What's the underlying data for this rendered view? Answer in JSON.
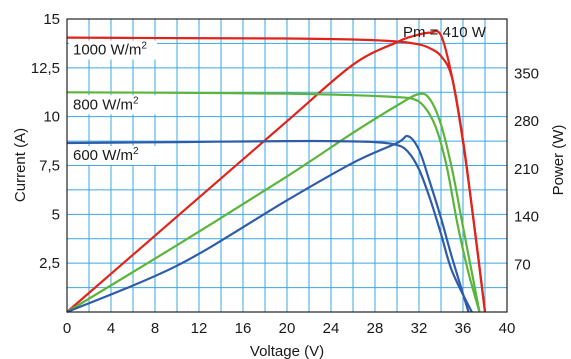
{
  "chart_data": {
    "type": "line",
    "xlabel": "Voltage (V)",
    "ylabel": "Current (A)",
    "y2label": "Power (W)",
    "xlim": [
      0,
      40
    ],
    "ylim": [
      0,
      15
    ],
    "y2lim": [
      0,
      430
    ],
    "grid": true,
    "x_ticks": [
      "0",
      "4",
      "8",
      "12",
      "16",
      "20",
      "24",
      "28",
      "32",
      "36",
      "40"
    ],
    "y_ticks": [
      {
        "value": 2.5,
        "label": "2,5"
      },
      {
        "value": 5,
        "label": "5"
      },
      {
        "value": 7.5,
        "label": "7,5"
      },
      {
        "value": 10,
        "label": "10"
      },
      {
        "value": 12.5,
        "label": "12,5"
      },
      {
        "value": 15,
        "label": "15"
      }
    ],
    "y2_ticks": [
      {
        "value": 70,
        "label": "70"
      },
      {
        "value": 140,
        "label": "140"
      },
      {
        "value": 210,
        "label": "210"
      },
      {
        "value": 280,
        "label": "280"
      },
      {
        "value": 350,
        "label": "350"
      }
    ],
    "annotation": "Pm = 410 W",
    "series": [
      {
        "name": "1000 W/m",
        "name_sup": "2",
        "color": "#e2231a",
        "iv": [
          [
            0,
            14.05
          ],
          [
            10,
            14.02
          ],
          [
            20,
            14.0
          ],
          [
            26,
            13.95
          ],
          [
            30,
            13.85
          ],
          [
            32,
            13.7
          ],
          [
            33,
            13.5
          ],
          [
            34,
            13.1
          ],
          [
            35,
            12.0
          ],
          [
            36,
            8.8
          ],
          [
            37,
            4.5
          ],
          [
            38,
            0
          ]
        ],
        "pv": [
          [
            0,
            0
          ],
          [
            10,
            140
          ],
          [
            20,
            280
          ],
          [
            26,
            363
          ],
          [
            30,
            396
          ],
          [
            31.5,
            405
          ],
          [
            33,
            410
          ],
          [
            34,
            406
          ],
          [
            35,
            345
          ],
          [
            36,
            250
          ],
          [
            37,
            130
          ],
          [
            38,
            0
          ]
        ]
      },
      {
        "name": "800 W/m",
        "name_sup": "2",
        "color": "#5bb53a",
        "iv": [
          [
            0,
            11.25
          ],
          [
            10,
            11.22
          ],
          [
            20,
            11.18
          ],
          [
            26,
            11.1
          ],
          [
            30,
            11.0
          ],
          [
            31.5,
            10.9
          ],
          [
            32.5,
            10.5
          ],
          [
            33.5,
            9.5
          ],
          [
            34.5,
            7.5
          ],
          [
            35.5,
            4.5
          ],
          [
            36.5,
            2.0
          ],
          [
            37.5,
            0
          ]
        ],
        "pv": [
          [
            0,
            0
          ],
          [
            10,
            98
          ],
          [
            20,
            199
          ],
          [
            26,
            263
          ],
          [
            30,
            303
          ],
          [
            32,
            320
          ],
          [
            33,
            312
          ],
          [
            34,
            275
          ],
          [
            35,
            210
          ],
          [
            36,
            125
          ],
          [
            37.5,
            0
          ]
        ]
      },
      {
        "name": "600 W/m",
        "name_sup": "2",
        "color": "#2f5ca8",
        "iv": [
          [
            0,
            8.65
          ],
          [
            10,
            8.7
          ],
          [
            20,
            8.75
          ],
          [
            24,
            8.75
          ],
          [
            28,
            8.7
          ],
          [
            30,
            8.55
          ],
          [
            31,
            8.2
          ],
          [
            32,
            7.3
          ],
          [
            33,
            5.8
          ],
          [
            34,
            4.0
          ],
          [
            35,
            2.1
          ],
          [
            36.8,
            0
          ]
        ],
        "pv": [
          [
            0,
            0
          ],
          [
            10,
            68
          ],
          [
            20,
            164
          ],
          [
            26,
            219
          ],
          [
            30,
            248
          ],
          [
            31,
            258
          ],
          [
            32,
            238
          ],
          [
            33,
            190
          ],
          [
            34,
            138
          ],
          [
            35,
            80
          ],
          [
            36.5,
            0
          ]
        ]
      }
    ]
  }
}
